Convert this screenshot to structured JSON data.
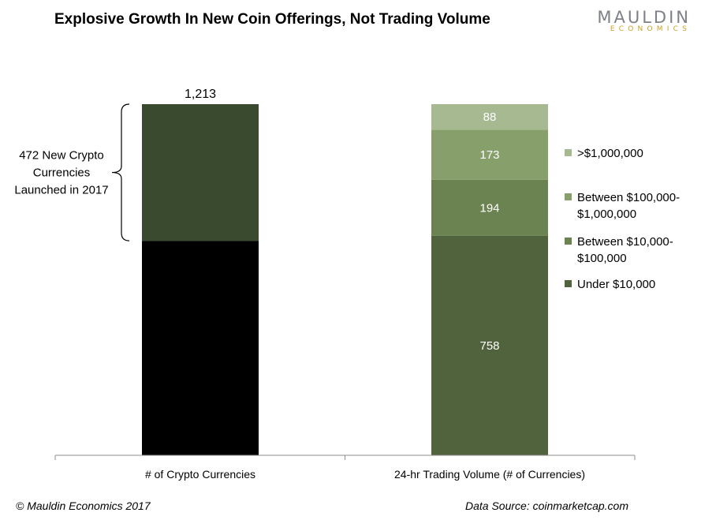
{
  "title": "Explosive Growth In New Coin Offerings, Not Trading Volume",
  "logo": {
    "main": "MAULDIN",
    "sub": "ECONOMICS"
  },
  "footer": {
    "copyright": "© Mauldin Economics 2017",
    "source": "Data Source: coinmarketcap.com"
  },
  "chart_data": {
    "type": "bar",
    "stacked": true,
    "categories": [
      "# of Crypto Currencies",
      "24-hr Trading Volume (# of Currencies)"
    ],
    "ylim": [
      0,
      1213
    ],
    "grid": false,
    "bars": [
      {
        "category": "# of Crypto Currencies",
        "total_label": "1,213",
        "segments": [
          {
            "value": 741,
            "color": "#000000"
          },
          {
            "value": 472,
            "color": "#3a4a2e"
          }
        ],
        "annotation": {
          "text_lines": [
            "472 New Crypto",
            "Currencies",
            "Launched in 2017"
          ],
          "span": [
            741,
            1213
          ]
        }
      },
      {
        "category": "24-hr Trading Volume (# of Currencies)",
        "segments": [
          {
            "name": "Under $10,000",
            "value": 758,
            "label": "758",
            "color": "#50633c"
          },
          {
            "name": "Between $10,000-$100,000",
            "value": 194,
            "label": "194",
            "color": "#6a8351"
          },
          {
            "name": "Between $100,000-$1,000,000",
            "value": 173,
            "label": "173",
            "color": "#87a06b"
          },
          {
            "name": ">$1,000,000",
            "value": 88,
            "label": "88",
            "color": "#a7b990"
          }
        ]
      }
    ],
    "legend": {
      "position": "right",
      "entries": [
        {
          "lines": [
            ">$1,000,000"
          ],
          "color": "#a7b990"
        },
        {
          "lines": [
            "Between $100,000-",
            "$1,000,000"
          ],
          "color": "#87a06b"
        },
        {
          "lines": [
            "Between $10,000-",
            "$100,000"
          ],
          "color": "#6a8351"
        },
        {
          "lines": [
            "Under $10,000"
          ],
          "color": "#50633c"
        }
      ]
    }
  }
}
